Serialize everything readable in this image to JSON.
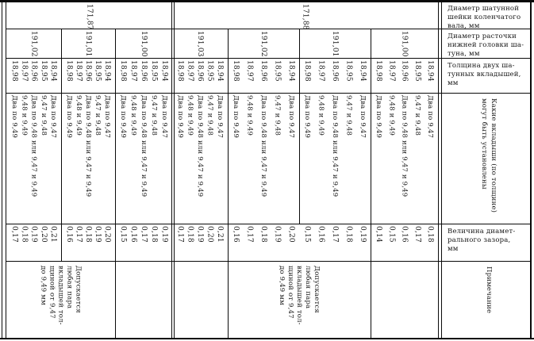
{
  "row_headers": [
    {
      "id": "shaft",
      "lines": [
        "Диаметр шатунной",
        "шейки коленчатого",
        "вала, мм"
      ]
    },
    {
      "id": "bore",
      "lines": [
        "Диаметр расточки",
        "нижней головки ша-",
        "туна, мм"
      ]
    },
    {
      "id": "thickness",
      "lines": [
        "Толщина двух ша-",
        "тунных вкладышей,",
        "мм"
      ]
    },
    {
      "id": "shells",
      "orientation": "vertical",
      "lines": [
        "Какие вкладыши (по толщине)",
        "могут быть установлены"
      ]
    },
    {
      "id": "clearance",
      "lines": [
        "Величина диамет-",
        "рального зазора,",
        "мм"
      ]
    },
    {
      "id": "note",
      "orientation": "vertical",
      "lines": [
        "Примечание"
      ]
    }
  ],
  "table": {
    "thickness_options": [
      "18,94",
      "18,95",
      "18,96",
      "18,97",
      "18,98"
    ],
    "shell_options": [
      "Два по 9,47",
      "9,47 и 9,48",
      "Два по 9,48 или 9,47 и 9,49",
      "9,48 и 9,49",
      "Два по 9,49"
    ],
    "groups": [
      {
        "shaft_diameter": "171,88",
        "rows": [
          {
            "bore": "191,00",
            "clearances": [
              "0,18",
              "0,17",
              "0,16",
              "0,15",
              "0,14"
            ]
          },
          {
            "bore": "191,01",
            "clearances": [
              "0,19",
              "0,18",
              "0,17",
              "0,16",
              "0,15"
            ]
          },
          {
            "bore": "191,02",
            "clearances": [
              "0,20",
              "0,19",
              "0,18",
              "0,17",
              "0,16"
            ]
          },
          {
            "bore": "191,03",
            "clearances": [
              "0,21",
              "0,20",
              "0,19",
              "0,18",
              "0,17"
            ]
          }
        ]
      },
      {
        "shaft_diameter": "171,87",
        "rows": [
          {
            "bore": "191,00",
            "clearances": [
              "0,19",
              "0,18",
              "0,17",
              "0,16",
              "0,15"
            ]
          },
          {
            "bore": "191,01",
            "clearances": [
              "0,20",
              "0,19",
              "0,18",
              "0,17",
              "0,16"
            ]
          },
          {
            "bore": "191,02",
            "clearances": [
              "0,21",
              "0,20",
              "0,19",
              "0,18",
              "0,17"
            ]
          }
        ]
      }
    ],
    "notes": [
      {
        "lines": [
          "Допускается",
          "любая пара",
          "вкладышей тол-",
          "щиной от 9,47",
          "до 9,49 мм"
        ]
      },
      {
        "lines": [
          "Допускается",
          "любая пара",
          "вкладышей тол-",
          "щиной от 9,47",
          "до 9,49 мм"
        ]
      }
    ]
  }
}
